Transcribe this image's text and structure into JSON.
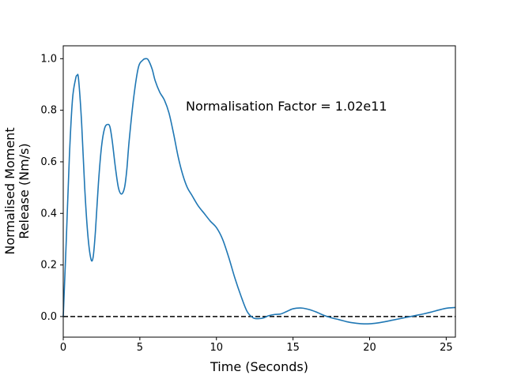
{
  "chart_data": {
    "type": "line",
    "xlabel": "Time (Seconds)",
    "ylabel_lines": [
      "Normalised Moment",
      "Release (Nm/s)"
    ],
    "annotation": "Normalisation Factor = 1.02e11",
    "xlim": [
      0,
      25.6
    ],
    "ylim": [
      -0.08,
      1.05
    ],
    "x_ticks": [
      0,
      5,
      10,
      15,
      20,
      25
    ],
    "y_ticks": [
      0.0,
      0.2,
      0.4,
      0.6,
      0.8,
      1.0
    ],
    "x_tick_labels": [
      "0",
      "5",
      "10",
      "15",
      "20",
      "25"
    ],
    "y_tick_labels": [
      "0.0",
      "0.2",
      "0.4",
      "0.6",
      "0.8",
      "1.0"
    ],
    "grid": false,
    "baseline": {
      "y": 0,
      "style": "dashed",
      "color": "#000000"
    },
    "series": [
      {
        "color": "#1f77b4",
        "x": [
          0,
          0.2,
          0.4,
          0.6,
          0.8,
          0.9,
          1.0,
          1.2,
          1.4,
          1.6,
          1.8,
          1.95,
          2.1,
          2.3,
          2.5,
          2.7,
          2.9,
          3.05,
          3.2,
          3.4,
          3.6,
          3.8,
          4.0,
          4.15,
          4.3,
          4.6,
          4.9,
          5.2,
          5.4,
          5.55,
          5.8,
          6.0,
          6.3,
          6.6,
          6.9,
          7.2,
          7.5,
          7.8,
          8.1,
          8.4,
          8.8,
          9.2,
          9.6,
          10.0,
          10.4,
          10.8,
          11.2,
          11.6,
          12.0,
          12.4,
          12.8,
          13.1,
          13.4,
          13.8,
          14.2,
          14.6,
          15.0,
          15.5,
          16.0,
          16.5,
          17.0,
          17.5,
          18.0,
          18.5,
          19.0,
          19.5,
          20.0,
          20.5,
          21.0,
          21.5,
          22.0,
          22.5,
          23.0,
          23.5,
          24.0,
          24.5,
          25.0,
          25.6
        ],
        "y": [
          0.0,
          0.3,
          0.62,
          0.84,
          0.92,
          0.935,
          0.92,
          0.75,
          0.5,
          0.32,
          0.225,
          0.23,
          0.33,
          0.52,
          0.66,
          0.73,
          0.745,
          0.735,
          0.68,
          0.58,
          0.5,
          0.475,
          0.5,
          0.57,
          0.68,
          0.85,
          0.965,
          0.995,
          1.0,
          0.995,
          0.96,
          0.915,
          0.87,
          0.84,
          0.79,
          0.71,
          0.62,
          0.55,
          0.5,
          0.47,
          0.43,
          0.4,
          0.37,
          0.345,
          0.3,
          0.23,
          0.15,
          0.08,
          0.02,
          -0.005,
          -0.008,
          -0.005,
          0.003,
          0.008,
          0.01,
          0.02,
          0.03,
          0.033,
          0.028,
          0.018,
          0.005,
          -0.005,
          -0.012,
          -0.02,
          -0.025,
          -0.028,
          -0.028,
          -0.025,
          -0.02,
          -0.014,
          -0.008,
          -0.002,
          0.004,
          0.01,
          0.017,
          0.025,
          0.032,
          0.035
        ]
      }
    ]
  }
}
